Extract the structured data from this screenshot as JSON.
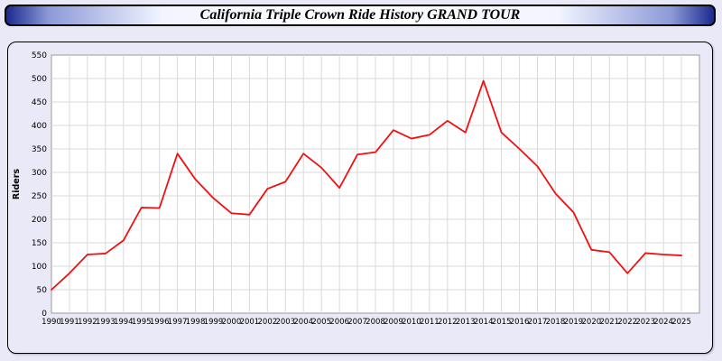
{
  "window": {
    "title": "California Triple Crown Ride History GRAND TOUR"
  },
  "chart_data": {
    "type": "line",
    "title": "California Triple Crown Ride History GRAND TOUR",
    "xlabel": "",
    "ylabel": "Riders",
    "ylim": [
      0,
      550
    ],
    "ytick_step": 50,
    "grid": true,
    "legend_position": "none",
    "line_color": "#ee1111",
    "plot_bg": "#ffffff",
    "grid_color": "#d9d9d9",
    "axis_color": "#9a9a9a",
    "categories": [
      1990,
      1991,
      1992,
      1993,
      1994,
      1995,
      1996,
      1997,
      1998,
      1999,
      2000,
      2001,
      2002,
      2003,
      2004,
      2005,
      2006,
      2007,
      2008,
      2009,
      2010,
      2011,
      2012,
      2013,
      2014,
      2015,
      2016,
      2017,
      2018,
      2019,
      2020,
      2021,
      2022,
      2023,
      2024,
      2025
    ],
    "values": [
      50,
      85,
      125,
      127,
      155,
      225,
      224,
      340,
      285,
      245,
      213,
      210,
      265,
      280,
      340,
      310,
      267,
      338,
      343,
      390,
      372,
      380,
      410,
      385,
      495,
      385,
      350,
      313,
      255,
      215,
      135,
      130,
      85,
      128,
      125,
      123
    ]
  }
}
